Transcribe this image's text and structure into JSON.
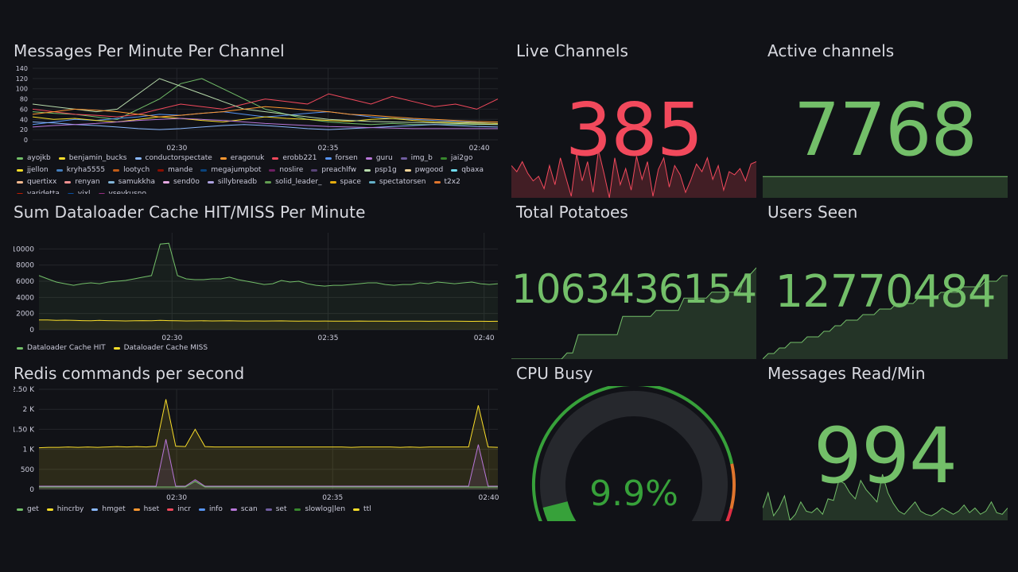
{
  "colors": {
    "background": "#111217",
    "green": "#73bf69",
    "red": "#f2495c",
    "yellow": "#fade2a",
    "purple": "#b877d9",
    "gauge_green": "#37a13a",
    "gauge_orange": "#e0752d",
    "gauge_red": "#e02f44",
    "gauge_track": "#26282d"
  },
  "panels": {
    "messages": {
      "title": "Messages Per Minute Per Channel",
      "legend": [
        {
          "label": "ayojkb",
          "color": "#73bf69"
        },
        {
          "label": "benjamin_bucks",
          "color": "#fade2a"
        },
        {
          "label": "conductorspectate",
          "color": "#8ab8ff"
        },
        {
          "label": "eragonuk",
          "color": "#ff9830"
        },
        {
          "label": "erobb221",
          "color": "#f2495c"
        },
        {
          "label": "forsen",
          "color": "#5794f2"
        },
        {
          "label": "guru",
          "color": "#b877d9"
        },
        {
          "label": "img_b",
          "color": "#705da0"
        },
        {
          "label": "jai2go",
          "color": "#37872d"
        },
        {
          "label": "jjellon",
          "color": "#fade2a"
        },
        {
          "label": "kryha5555",
          "color": "#447ebc"
        },
        {
          "label": "lootych",
          "color": "#c15c17"
        },
        {
          "label": "mande",
          "color": "#890f02"
        },
        {
          "label": "megajumpbot",
          "color": "#0a437c"
        },
        {
          "label": "noslire",
          "color": "#6d1f62"
        },
        {
          "label": "preachlfw",
          "color": "#584477"
        },
        {
          "label": "psp1g",
          "color": "#b7dbab"
        },
        {
          "label": "pwgood",
          "color": "#f4d598"
        },
        {
          "label": "qbaxa",
          "color": "#70dbed"
        },
        {
          "label": "quertixx",
          "color": "#f9ba8f"
        },
        {
          "label": "renyan",
          "color": "#f29191"
        },
        {
          "label": "samukkha",
          "color": "#82b5d8"
        },
        {
          "label": "send0o",
          "color": "#e5a8e2"
        },
        {
          "label": "sillybreadb",
          "color": "#aea2e0"
        },
        {
          "label": "solid_leader_",
          "color": "#629e51"
        },
        {
          "label": "space",
          "color": "#e5ac0e"
        },
        {
          "label": "spectatorsen",
          "color": "#64b0c8"
        },
        {
          "label": "t2x2",
          "color": "#e0752d"
        },
        {
          "label": "varidetta",
          "color": "#bf1b00"
        },
        {
          "label": "vixl",
          "color": "#0a50a1"
        },
        {
          "label": "vsevkusno",
          "color": "#962d82"
        }
      ]
    },
    "dataloader": {
      "title": "Sum Dataloader Cache HIT/MISS Per Minute",
      "legend": [
        {
          "label": "Dataloader Cache HIT",
          "color": "#73bf69"
        },
        {
          "label": "Dataloader Cache MISS",
          "color": "#fade2a"
        }
      ]
    },
    "redis": {
      "title": "Redis commands per second",
      "legend": [
        {
          "label": "get",
          "color": "#73bf69"
        },
        {
          "label": "hincrby",
          "color": "#fade2a"
        },
        {
          "label": "hmget",
          "color": "#8ab8ff"
        },
        {
          "label": "hset",
          "color": "#ff9830"
        },
        {
          "label": "incr",
          "color": "#f2495c"
        },
        {
          "label": "info",
          "color": "#5794f2"
        },
        {
          "label": "scan",
          "color": "#b877d9"
        },
        {
          "label": "set",
          "color": "#705da0"
        },
        {
          "label": "slowlog|len",
          "color": "#37872d"
        },
        {
          "label": "ttl",
          "color": "#fade2a"
        }
      ]
    },
    "live_channels": {
      "title": "Live Channels",
      "value": "385"
    },
    "active_channels": {
      "title": "Active channels",
      "value": "7768"
    },
    "total_potatoes": {
      "title": "Total Potatoes",
      "value": "1063436154"
    },
    "users_seen": {
      "title": "Users Seen",
      "value": "12770484"
    },
    "cpu_busy": {
      "title": "CPU Busy",
      "value": "9.9%",
      "percent": 9.9
    },
    "messages_read": {
      "title": "Messages Read/Min",
      "value": "994"
    }
  },
  "chart_data": [
    {
      "type": "line",
      "name": "messages",
      "title": "Messages Per Minute Per Channel",
      "ylim": [
        0,
        140
      ],
      "yticks": [
        "0",
        "20",
        "40",
        "60",
        "80",
        "100",
        "120",
        "140"
      ],
      "xticks": [
        "02:30",
        "02:35",
        "02:40"
      ],
      "series": [
        {
          "name": "ayojkb",
          "color": "#73bf69",
          "values": [
            55,
            52,
            50,
            45,
            40,
            60,
            80,
            110,
            120,
            100,
            80,
            60,
            50,
            40,
            35,
            32,
            30,
            32,
            30,
            30,
            30,
            30,
            30
          ]
        },
        {
          "name": "erobb221",
          "color": "#f2495c",
          "values": [
            60,
            55,
            50,
            48,
            45,
            50,
            60,
            70,
            65,
            60,
            70,
            80,
            75,
            70,
            90,
            80,
            70,
            85,
            75,
            65,
            70,
            60,
            80
          ]
        },
        {
          "name": "forsen",
          "color": "#5794f2",
          "values": [
            30,
            35,
            40,
            38,
            42,
            45,
            50,
            48,
            52,
            55,
            50,
            45,
            48,
            52,
            55,
            50,
            45,
            42,
            40,
            38,
            36,
            34,
            32
          ]
        },
        {
          "name": "benjamin_bucks",
          "color": "#fade2a",
          "values": [
            45,
            40,
            42,
            38,
            35,
            40,
            45,
            42,
            38,
            35,
            40,
            45,
            42,
            40,
            38,
            36,
            40,
            42,
            38,
            35,
            34,
            33,
            32
          ]
        },
        {
          "name": "psp1g",
          "color": "#b7dbab",
          "values": [
            70,
            65,
            60,
            55,
            60,
            90,
            120,
            105,
            90,
            75,
            60,
            55,
            50,
            45,
            40,
            38,
            36,
            35,
            34,
            33,
            32,
            31,
            30
          ]
        },
        {
          "name": "conductorspectate",
          "color": "#8ab8ff",
          "values": [
            35,
            33,
            30,
            28,
            25,
            22,
            20,
            22,
            25,
            28,
            30,
            28,
            25,
            22,
            20,
            22,
            24,
            26,
            28,
            30,
            28,
            26,
            25
          ]
        },
        {
          "name": "guru",
          "color": "#b877d9",
          "values": [
            25,
            28,
            30,
            32,
            35,
            38,
            40,
            42,
            40,
            38,
            35,
            32,
            30,
            28,
            26,
            25,
            24,
            23,
            22,
            22,
            22,
            22,
            22
          ]
        },
        {
          "name": "eragonuk",
          "color": "#ff9830",
          "values": [
            50,
            55,
            60,
            58,
            55,
            50,
            45,
            48,
            52,
            55,
            60,
            65,
            62,
            58,
            55,
            50,
            48,
            45,
            42,
            40,
            38,
            36,
            35
          ]
        }
      ]
    },
    {
      "type": "line",
      "name": "dataloader",
      "title": "Sum Dataloader Cache HIT/MISS Per Minute",
      "ylim": [
        0,
        12000
      ],
      "yticks": [
        "0",
        "2000",
        "4000",
        "6000",
        "8000",
        "10000"
      ],
      "xticks": [
        "02:30",
        "02:35",
        "02:40"
      ],
      "series": [
        {
          "name": "Dataloader Cache HIT",
          "color": "#73bf69",
          "values": [
            6700,
            6300,
            5900,
            5700,
            5500,
            5700,
            5800,
            5700,
            5900,
            6000,
            6100,
            6300,
            6500,
            6700,
            10600,
            10700,
            6700,
            6300,
            6200,
            6200,
            6300,
            6300,
            6500,
            6200,
            6000,
            5800,
            5600,
            5700,
            6100,
            5900,
            6000,
            5700,
            5500,
            5400,
            5500,
            5500,
            5600,
            5700,
            5800,
            5800,
            5600,
            5500,
            5600,
            5600,
            5800,
            5700,
            5900,
            5800,
            5700,
            5800,
            5900,
            5700,
            5600,
            5700
          ]
        },
        {
          "name": "Dataloader Cache MISS",
          "color": "#fade2a",
          "values": [
            1200,
            1200,
            1150,
            1180,
            1150,
            1120,
            1100,
            1150,
            1120,
            1100,
            1080,
            1100,
            1120,
            1100,
            1150,
            1120,
            1100,
            1080,
            1090,
            1100,
            1080,
            1090,
            1100,
            1080,
            1070,
            1080,
            1070,
            1080,
            1090,
            1070,
            1060,
            1070,
            1060,
            1070,
            1060,
            1050,
            1060,
            1070,
            1050,
            1060,
            1050,
            1040,
            1050,
            1060,
            1050,
            1040,
            1050,
            1060,
            1050,
            1040,
            1030,
            1040,
            1030,
            1040
          ]
        }
      ]
    },
    {
      "type": "area",
      "name": "redis",
      "title": "Redis commands per second",
      "ylim": [
        0,
        2500
      ],
      "yticks": [
        "0",
        "500",
        "1 K",
        "1.50 K",
        "2 K",
        "2.50 K"
      ],
      "xticks": [
        "02:30",
        "02:35",
        "02:40"
      ],
      "series": [
        {
          "name": "hincrby",
          "color": "#fade2a",
          "values": [
            1040,
            1050,
            1050,
            1060,
            1050,
            1060,
            1050,
            1060,
            1070,
            1060,
            1070,
            1060,
            1080,
            2250,
            1080,
            1070,
            1500,
            1070,
            1060,
            1060,
            1060,
            1060,
            1060,
            1060,
            1060,
            1060,
            1060,
            1060,
            1060,
            1060,
            1060,
            1060,
            1050,
            1060,
            1060,
            1060,
            1060,
            1050,
            1060,
            1050,
            1060,
            1060,
            1060,
            1060,
            1060,
            2100,
            1060,
            1050
          ]
        },
        {
          "name": "scan",
          "color": "#b877d9",
          "values": [
            80,
            80,
            80,
            80,
            80,
            80,
            80,
            80,
            80,
            80,
            80,
            80,
            80,
            1250,
            80,
            80,
            240,
            80,
            80,
            80,
            80,
            80,
            80,
            80,
            80,
            80,
            80,
            80,
            80,
            80,
            80,
            80,
            80,
            80,
            80,
            80,
            80,
            80,
            80,
            80,
            80,
            80,
            80,
            80,
            80,
            1120,
            80,
            80
          ]
        },
        {
          "name": "get",
          "color": "#73bf69",
          "values": [
            60,
            60,
            60,
            60,
            60,
            60,
            60,
            60,
            60,
            60,
            60,
            60,
            60,
            60,
            60,
            60,
            200,
            60,
            60,
            60,
            60,
            60,
            60,
            60,
            60,
            60,
            60,
            60,
            60,
            60,
            60,
            60,
            60,
            60,
            60,
            60,
            60,
            60,
            60,
            60,
            60,
            60,
            60,
            60,
            60,
            60,
            60,
            60
          ]
        }
      ]
    },
    {
      "type": "area",
      "name": "live_channels_spark",
      "values": [
        380,
        372,
        385,
        370,
        360,
        366,
        350,
        380,
        355,
        390,
        365,
        340,
        395,
        360,
        385,
        345,
        400,
        370,
        338,
        390,
        355,
        376,
        348,
        392,
        362,
        385,
        340,
        375,
        390,
        352,
        380,
        368,
        345,
        362,
        382,
        372,
        390,
        362,
        380,
        348,
        372,
        368,
        376,
        360,
        382,
        385
      ]
    },
    {
      "type": "area",
      "name": "active_channels_spark",
      "values": [
        7768,
        7768,
        7768,
        7768,
        7768,
        7768,
        7768,
        7768,
        7768,
        7768
      ]
    },
    {
      "type": "area",
      "name": "total_potatoes_spark",
      "values": [
        1,
        1,
        1,
        1,
        1,
        1,
        1,
        1,
        1,
        1,
        2,
        2,
        5,
        5,
        5,
        5,
        5,
        5,
        5,
        5,
        8,
        8,
        8,
        8,
        8,
        8,
        9,
        9,
        9,
        9,
        9,
        11,
        11,
        11,
        11,
        11,
        12,
        12,
        12,
        12,
        12,
        12,
        15,
        15,
        16
      ]
    },
    {
      "type": "area",
      "name": "users_seen_spark",
      "values": [
        1,
        2,
        2,
        3,
        3,
        4,
        4,
        4,
        5,
        5,
        5,
        6,
        6,
        7,
        7,
        8,
        8,
        8,
        9,
        9,
        9,
        10,
        10,
        10,
        11,
        11,
        11,
        11,
        12,
        12,
        12,
        12,
        13,
        13,
        13,
        13,
        14,
        14,
        14,
        14,
        15,
        15,
        15,
        16,
        16
      ]
    },
    {
      "type": "area",
      "name": "messages_read_spark",
      "values": [
        900,
        1000,
        850,
        900,
        980,
        820,
        860,
        940,
        880,
        870,
        900,
        860,
        960,
        950,
        1080,
        1060,
        1000,
        960,
        1080,
        1020,
        980,
        940,
        1120,
        1000,
        930,
        880,
        860,
        900,
        940,
        880,
        860,
        850,
        870,
        900,
        880,
        860,
        880,
        920,
        870,
        900,
        860,
        880,
        940,
        870,
        860,
        900
      ]
    }
  ]
}
